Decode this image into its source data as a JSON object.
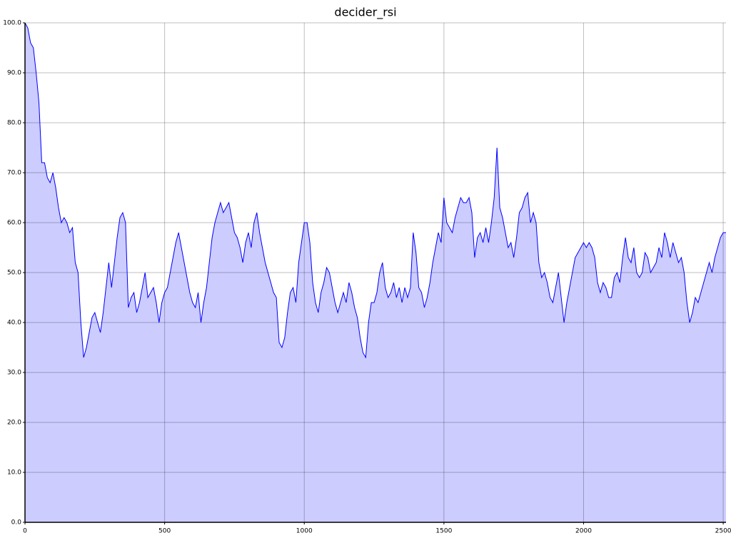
{
  "chart_data": {
    "type": "area",
    "title": "decider_rsi",
    "x": [
      0,
      10,
      20,
      30,
      40,
      50,
      60,
      70,
      80,
      90,
      100,
      110,
      120,
      130,
      140,
      150,
      160,
      170,
      180,
      190,
      200,
      210,
      220,
      230,
      240,
      250,
      260,
      270,
      280,
      290,
      300,
      310,
      320,
      330,
      340,
      350,
      360,
      370,
      380,
      390,
      400,
      410,
      420,
      430,
      440,
      450,
      460,
      470,
      480,
      490,
      500,
      510,
      520,
      530,
      540,
      550,
      560,
      570,
      580,
      590,
      600,
      610,
      620,
      630,
      640,
      650,
      660,
      670,
      680,
      690,
      700,
      710,
      720,
      730,
      740,
      750,
      760,
      770,
      780,
      790,
      800,
      810,
      820,
      830,
      840,
      850,
      860,
      870,
      880,
      890,
      900,
      910,
      920,
      930,
      940,
      950,
      960,
      970,
      980,
      990,
      1000,
      1010,
      1020,
      1030,
      1040,
      1050,
      1060,
      1070,
      1080,
      1090,
      1100,
      1110,
      1120,
      1130,
      1140,
      1150,
      1160,
      1170,
      1180,
      1190,
      1200,
      1210,
      1220,
      1230,
      1240,
      1250,
      1260,
      1270,
      1280,
      1290,
      1300,
      1310,
      1320,
      1330,
      1340,
      1350,
      1360,
      1370,
      1380,
      1390,
      1400,
      1410,
      1420,
      1430,
      1440,
      1450,
      1460,
      1470,
      1480,
      1490,
      1500,
      1510,
      1520,
      1530,
      1540,
      1550,
      1560,
      1570,
      1580,
      1590,
      1600,
      1610,
      1620,
      1630,
      1640,
      1650,
      1660,
      1670,
      1680,
      1690,
      1700,
      1710,
      1720,
      1730,
      1740,
      1750,
      1760,
      1770,
      1780,
      1790,
      1800,
      1810,
      1820,
      1830,
      1840,
      1850,
      1860,
      1870,
      1880,
      1890,
      1900,
      1910,
      1920,
      1930,
      1940,
      1950,
      1960,
      1970,
      1980,
      1990,
      2000,
      2010,
      2020,
      2030,
      2040,
      2050,
      2060,
      2070,
      2080,
      2090,
      2100,
      2110,
      2120,
      2130,
      2140,
      2150,
      2160,
      2170,
      2180,
      2190,
      2200,
      2210,
      2220,
      2230,
      2240,
      2250,
      2260,
      2270,
      2280,
      2290,
      2300,
      2310,
      2320,
      2330,
      2340,
      2350,
      2360,
      2370,
      2380,
      2390,
      2400,
      2410,
      2420,
      2430,
      2440,
      2450,
      2460,
      2470,
      2480,
      2490,
      2500,
      2510
    ],
    "values": [
      100,
      99,
      96,
      95,
      90,
      84,
      72,
      72,
      69,
      68,
      70,
      67,
      63,
      60,
      61,
      60,
      58,
      59,
      52,
      50,
      40,
      33,
      35,
      38,
      41,
      42,
      40,
      38,
      42,
      47,
      52,
      47,
      52,
      57,
      61,
      62,
      60,
      43,
      45,
      46,
      42,
      44,
      47,
      50,
      45,
      46,
      47,
      44,
      40,
      44,
      46,
      47,
      50,
      53,
      56,
      58,
      55,
      52,
      49,
      46,
      44,
      43,
      46,
      40,
      44,
      47,
      52,
      57,
      60,
      62,
      64,
      62,
      63,
      64,
      61,
      58,
      57,
      55,
      52,
      56,
      58,
      55,
      60,
      62,
      58,
      55,
      52,
      50,
      48,
      46,
      45,
      36,
      35,
      37,
      42,
      46,
      47,
      44,
      52,
      56,
      60,
      60,
      56,
      48,
      44,
      42,
      46,
      48,
      51,
      50,
      47,
      44,
      42,
      44,
      46,
      44,
      48,
      46,
      43,
      41,
      37,
      34,
      33,
      40,
      44,
      44,
      46,
      50,
      52,
      47,
      45,
      46,
      48,
      45,
      47,
      44,
      47,
      45,
      47,
      58,
      54,
      47,
      46,
      43,
      45,
      48,
      52,
      55,
      58,
      56,
      65,
      60,
      59,
      58,
      61,
      63,
      65,
      64,
      64,
      65,
      62,
      53,
      57,
      58,
      56,
      59,
      56,
      60,
      65,
      75,
      63,
      61,
      58,
      55,
      56,
      53,
      57,
      62,
      63,
      65,
      66,
      60,
      62,
      60,
      52,
      49,
      50,
      48,
      45,
      44,
      47,
      50,
      45,
      40,
      44,
      47,
      50,
      53,
      54,
      55,
      56,
      55,
      56,
      55,
      53,
      48,
      46,
      48,
      47,
      45,
      45,
      49,
      50,
      48,
      53,
      57,
      53,
      52,
      55,
      50,
      49,
      50,
      54,
      53,
      50,
      51,
      52,
      55,
      53,
      58,
      56,
      53,
      56,
      54,
      52,
      53,
      50,
      44,
      40,
      42,
      45,
      44,
      46,
      48,
      50,
      52,
      50,
      53,
      55,
      57,
      58,
      58
    ],
    "line_color": "#0000ff",
    "fill_color": "#ccccff",
    "xlim": [
      0,
      2510
    ],
    "ylim": [
      0,
      100
    ],
    "xticks": [
      0,
      500,
      1000,
      1500,
      2000,
      2500
    ],
    "yticks": [
      {
        "value": 0,
        "label": "0.0"
      },
      {
        "value": 10,
        "label": "10.0"
      },
      {
        "value": 20,
        "label": "20.0"
      },
      {
        "value": 30,
        "label": "30.0"
      },
      {
        "value": 40,
        "label": "40.0"
      },
      {
        "value": 50,
        "label": "50.0"
      },
      {
        "value": 60,
        "label": "60.0"
      },
      {
        "value": 70,
        "label": "70.0"
      },
      {
        "value": 80,
        "label": "80.0"
      },
      {
        "value": 90,
        "label": "90.0"
      },
      {
        "value": 100,
        "label": "100.0"
      }
    ],
    "grid": true
  }
}
